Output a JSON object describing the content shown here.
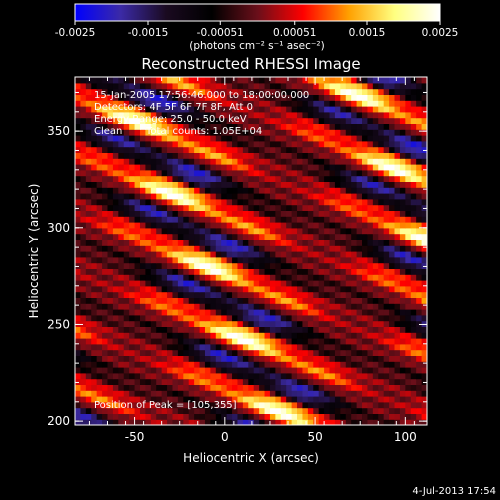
{
  "colorbar": {
    "ticks": [
      "-0.0025",
      "-0.0015",
      "-0.00051",
      "0.00051",
      "0.0015",
      "0.0025"
    ],
    "min": -0.0025,
    "max": 0.0025,
    "unit_label": "(photons cm⁻² s⁻¹ asec⁻²)",
    "colors": [
      "#0000ff",
      "#3b2aa6",
      "#1a0a20",
      "#000000",
      "#6a0f1a",
      "#ff0000",
      "#ffa000",
      "#ffff80",
      "#ffffff"
    ]
  },
  "chart_data": {
    "type": "heatmap",
    "title": "Reconstructed RHESSI Image",
    "xlabel": "Heliocentric X (arcsec)",
    "ylabel": "Heliocentric Y (arcsec)",
    "xlim": [
      -83,
      112
    ],
    "ylim": [
      198,
      378
    ],
    "xticks": [
      -50,
      0,
      50,
      100
    ],
    "yticks": [
      200,
      250,
      300,
      350
    ],
    "peak": [
      105,
      355
    ],
    "fringe": {
      "slope": -0.38,
      "period_arcsec": 30,
      "amplitude_min": -0.0025,
      "amplitude_max": 0.0025
    }
  },
  "annotations": {
    "time": "15-Jan-2005 17:56:46.000 to 18:00:00.000",
    "detectors": "Detectors: 4F 5F 6F 7F 8F, Att 0",
    "energy": "Energy Range: 25.0 - 50.0 keV",
    "clean": "Clean",
    "counts": "Total counts: 1.05E+04",
    "peak_text": "Position of Peak = [105,355]"
  },
  "footer": {
    "timestamp": "4-Jul-2013 17:54"
  }
}
